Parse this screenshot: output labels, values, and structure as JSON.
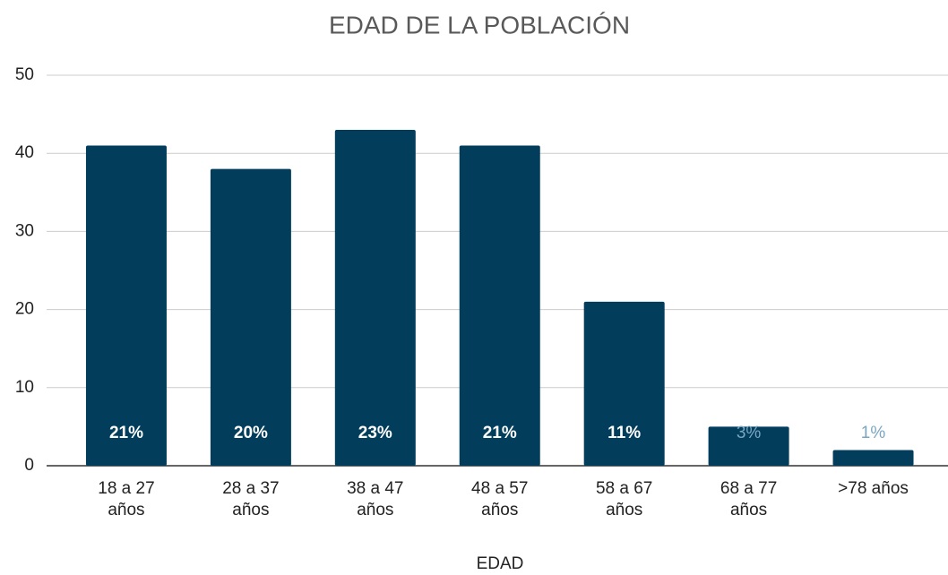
{
  "chart_data": {
    "type": "bar",
    "title": "EDAD DE LA POBLACIÓN",
    "x_label": "EDAD",
    "categories": [
      "18 a 27 años",
      "28 a 37 años",
      "38 a 47 años",
      "48 a 57 años",
      "58 a 67 años",
      "68 a 77 años",
      ">78 años"
    ],
    "values": [
      41,
      38,
      43,
      41,
      21,
      5,
      2
    ],
    "data_labels": [
      "21%",
      "20%",
      "23%",
      "21%",
      "11%",
      "3%",
      "1%"
    ],
    "color": "#023e5c",
    "ylim": [
      0,
      50
    ],
    "yticks": [
      0,
      10,
      20,
      30,
      40,
      50
    ],
    "grid": true
  }
}
